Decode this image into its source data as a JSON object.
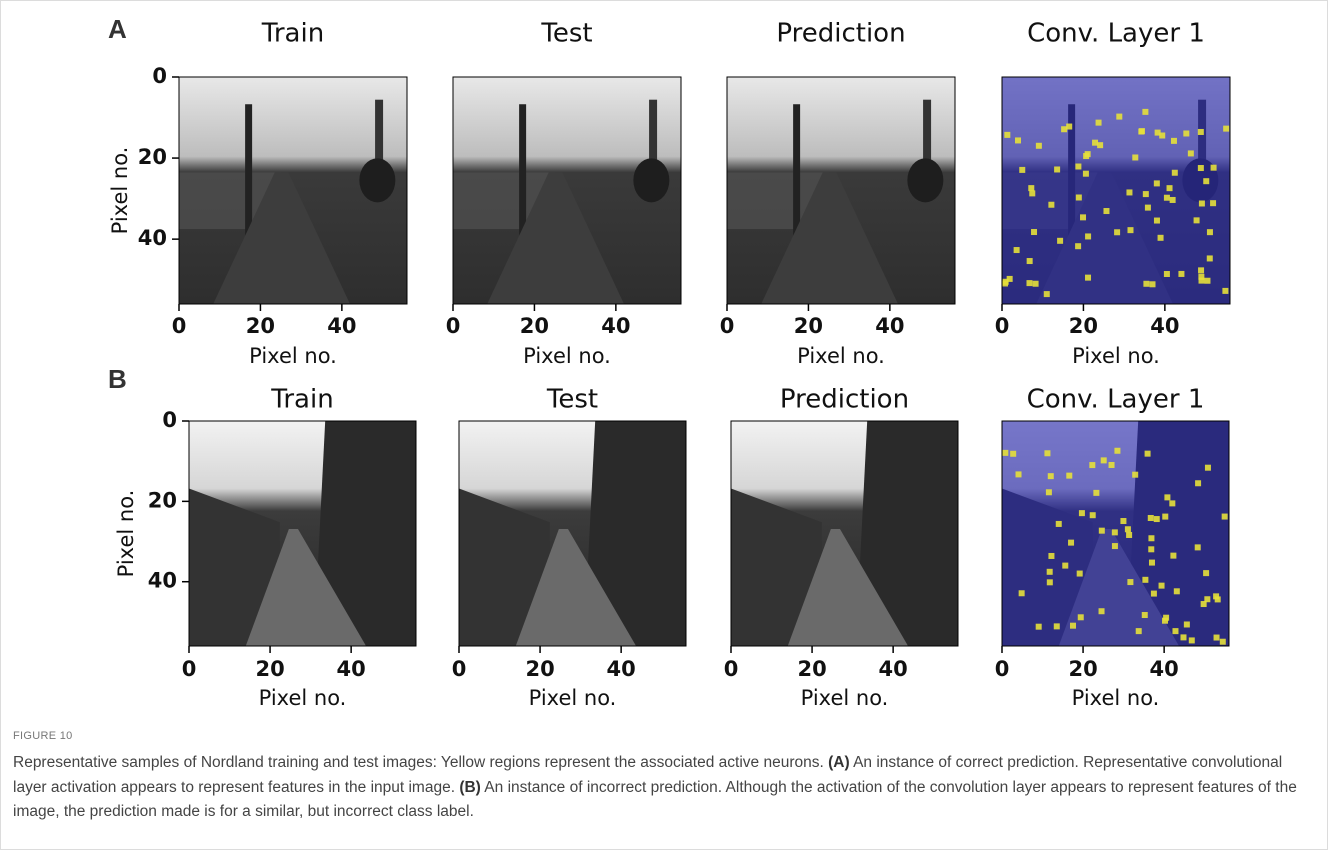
{
  "figure": {
    "panels": [
      {
        "label": "A",
        "ylabel": "Pixel no.",
        "yticks": [
          0,
          20,
          40
        ],
        "subplots": [
          {
            "title": "Train",
            "xticks": [
              0,
              20,
              40
            ],
            "xlabel": "Pixel no."
          },
          {
            "title": "Test",
            "xticks": [
              0,
              20,
              40
            ],
            "xlabel": "Pixel no."
          },
          {
            "title": "Prediction",
            "xticks": [
              0,
              20,
              40
            ],
            "xlabel": "Pixel no."
          },
          {
            "title": "Conv. Layer 1",
            "xticks": [
              0,
              20,
              40
            ],
            "xlabel": "Pixel no."
          }
        ]
      },
      {
        "label": "B",
        "ylabel": "Pixel no.",
        "yticks": [
          0,
          20,
          40
        ],
        "subplots": [
          {
            "title": "Train",
            "xticks": [
              0,
              20,
              40
            ],
            "xlabel": "Pixel no."
          },
          {
            "title": "Test",
            "xticks": [
              0,
              20,
              40
            ],
            "xlabel": "Pixel no."
          },
          {
            "title": "Prediction",
            "xticks": [
              0,
              20,
              40
            ],
            "xlabel": "Pixel no."
          },
          {
            "title": "Conv. Layer 1",
            "xticks": [
              0,
              20,
              40
            ],
            "xlabel": "Pixel no."
          }
        ]
      }
    ],
    "caption": {
      "label": "FIGURE 10",
      "parts": [
        "Representative samples of Nordland training and test images: Yellow regions represent the associated active neurons. ",
        "(A)",
        " An instance of correct prediction. Representative convolutional layer activation appears to represent features in the input image. ",
        "(B)",
        " An instance of incorrect prediction. Although the activation of the convolution layer appears to represent features of the image, the prediction made is for a similar, but incorrect class label."
      ]
    }
  }
}
